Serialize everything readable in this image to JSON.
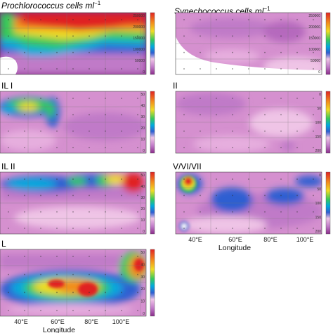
{
  "colors": {
    "scale": [
      "#8a2c8a",
      "#c07ac8",
      "#efc4e6",
      "#2f5fd1",
      "#00a9dd",
      "#36c95a",
      "#f0dc24",
      "#f28a1c",
      "#e02424"
    ]
  },
  "depth_ticks": [
    "0",
    "50",
    "100",
    "150",
    "200"
  ],
  "chart_data": [
    {
      "type": "heatmap",
      "title": "Prochlorococcus cells ml",
      "title_sup": "−1",
      "x_ticks": [],
      "x_label": "",
      "colorbar_ticks": [
        "250000",
        "200000",
        "150000",
        "100000",
        "50000",
        "0"
      ],
      "colorbar_range": [
        0,
        250000
      ]
    },
    {
      "type": "heatmap",
      "title": "Synechococcus cells ml",
      "title_sup": "−1",
      "x_ticks": [],
      "x_label": "",
      "colorbar_ticks": [
        "250000",
        "200000",
        "150000",
        "100000",
        "50000",
        "0"
      ],
      "colorbar_range": [
        0,
        250000
      ]
    },
    {
      "type": "heatmap",
      "title": "IL I",
      "x_ticks": [],
      "x_label": "",
      "colorbar_ticks": [
        "50",
        "40",
        "30",
        "20",
        "10",
        "0"
      ],
      "colorbar_range": [
        0,
        50
      ]
    },
    {
      "type": "heatmap",
      "title": "II",
      "x_ticks": [],
      "x_label": "",
      "colorbar_ticks": [],
      "colorbar_range": [
        0,
        50
      ]
    },
    {
      "type": "heatmap",
      "title": "IL II",
      "x_ticks": [],
      "x_label": "",
      "colorbar_ticks": [
        "50",
        "40",
        "30",
        "20",
        "10",
        "0"
      ],
      "colorbar_range": [
        0,
        50
      ]
    },
    {
      "type": "heatmap",
      "title": "V/VI/VII",
      "x_ticks": [
        "40°E",
        "60°E",
        "80°E",
        "100°E"
      ],
      "x_label": "Longitude",
      "colorbar_ticks": [],
      "colorbar_range": [
        0,
        50
      ]
    },
    {
      "type": "heatmap",
      "title": "L",
      "x_ticks": [
        "40°E",
        "60°E",
        "80°E",
        "100°E"
      ],
      "x_label": "Longitude",
      "colorbar_ticks": [
        "50",
        "40",
        "30",
        "20",
        "10",
        "0"
      ],
      "colorbar_range": [
        0,
        50
      ]
    }
  ]
}
